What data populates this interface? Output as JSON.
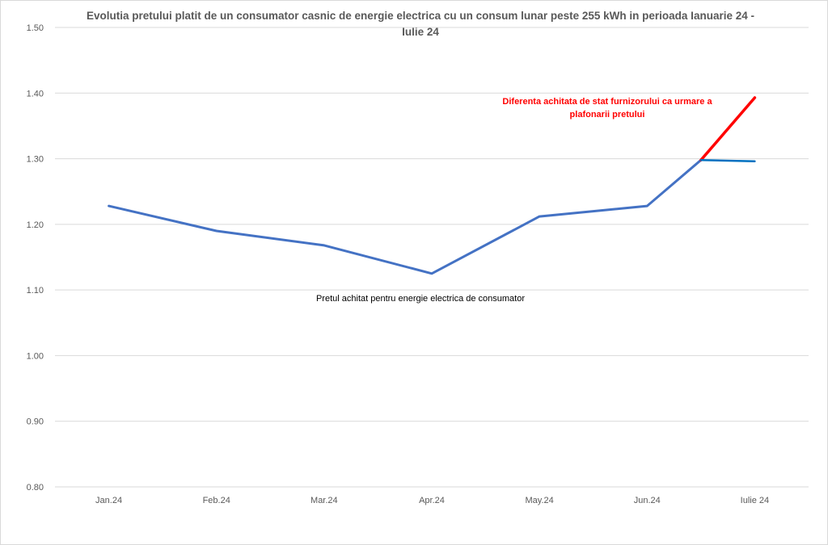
{
  "chart_data": {
    "type": "line",
    "title": "Evolutia pretului platit de un consumator casnic de energie electrica cu un consum lunar peste 255 kWh in perioada Ianuarie 24 - Iulie 24",
    "categories": [
      "Jan.24",
      "Feb.24",
      "Mar.24",
      "Apr.24",
      "May.24",
      "Jun.24",
      "Iulie 24"
    ],
    "ylim": [
      0.8,
      1.5
    ],
    "yticks": [
      "0.80",
      "0.90",
      "1.00",
      "1.10",
      "1.20",
      "1.30",
      "1.40",
      "1.50"
    ],
    "grid": true,
    "series": [
      {
        "color": "#4472c4",
        "points": [
          {
            "x": "Jan.24",
            "y": 1.228
          },
          {
            "x": "Feb.24",
            "y": 1.19
          },
          {
            "x": "Mar.24",
            "y": 1.168
          },
          {
            "x": "Apr.24",
            "y": 1.125
          },
          {
            "x": "May.24",
            "y": 1.212
          },
          {
            "x": "Jun.24",
            "y": 1.228
          },
          {
            "x": "Jun.24/Iulie 24",
            "y": 1.298
          }
        ]
      },
      {
        "color": "#ff0000",
        "points": [
          {
            "x": "Jun.24/Iulie 24",
            "y": 1.298
          },
          {
            "x": "Iulie 24",
            "y": 1.393
          }
        ]
      },
      {
        "color": "#0070c0",
        "points": [
          {
            "x": "Jun.24/Iulie 24",
            "y": 1.298
          },
          {
            "x": "Iulie 24",
            "y": 1.296
          }
        ]
      }
    ],
    "annotations": {
      "red": "Diferenta achitata de stat furnizorului ca urmare a plafonarii pretului",
      "black": "Pretul achitat pentru energie electrica de consumator"
    }
  }
}
